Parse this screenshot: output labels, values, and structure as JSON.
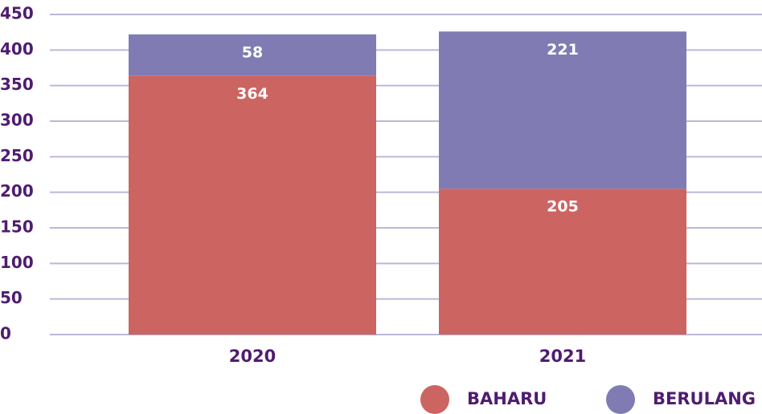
{
  "chart_data": {
    "type": "stacked_bar",
    "categories": [
      "2020",
      "2021"
    ],
    "series": [
      {
        "name": "BAHARU",
        "color": "#cc6461",
        "values": [
          364,
          205
        ]
      },
      {
        "name": "BERULANG",
        "color": "#807cb3",
        "values": [
          58,
          221
        ]
      }
    ],
    "ylim": [
      0,
      450
    ],
    "yticks": [
      0,
      50,
      100,
      150,
      200,
      250,
      300,
      350,
      400,
      450
    ],
    "grid": true,
    "legend": "bottom"
  }
}
